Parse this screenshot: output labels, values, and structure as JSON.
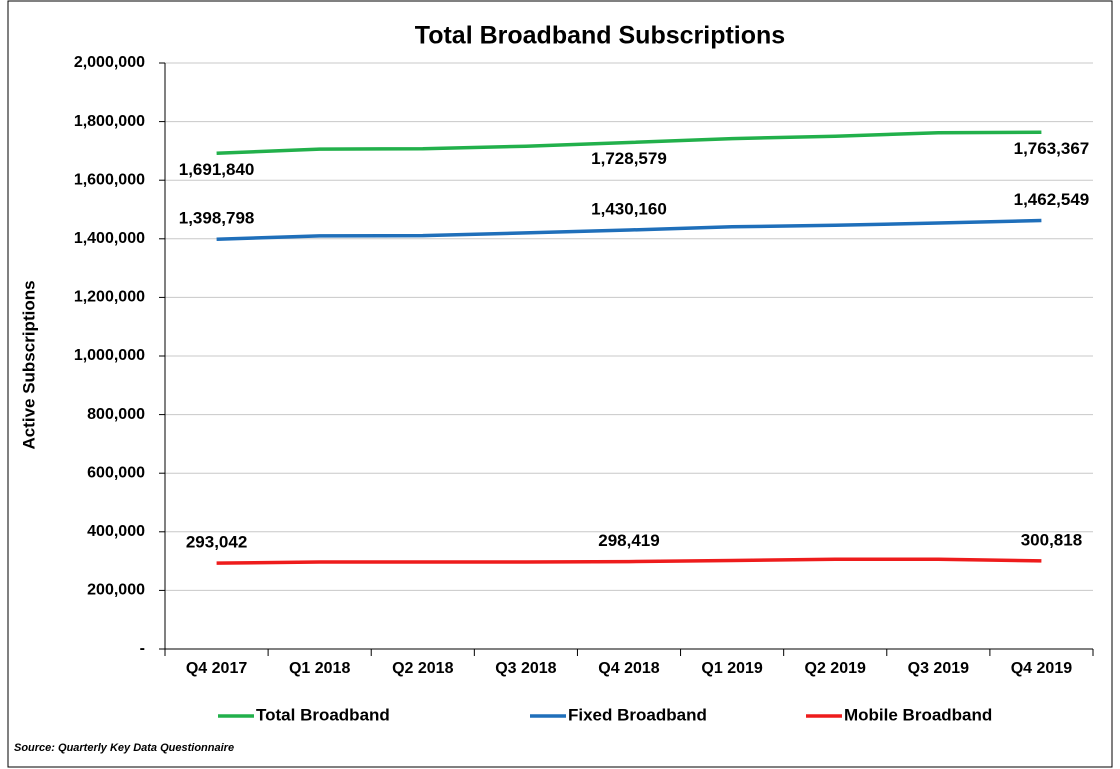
{
  "chart_data": {
    "type": "line",
    "title": "Total Broadband Subscriptions",
    "y_label": "Active Subscriptions",
    "source": "Source: Quarterly Key Data Questionnaire",
    "categories": [
      "Q4 2017",
      "Q1 2018",
      "Q2 2018",
      "Q3 2018",
      "Q4 2018",
      "Q1 2019",
      "Q2 2019",
      "Q3 2019",
      "Q4 2019"
    ],
    "series": [
      {
        "name": "Total Broadband",
        "color": "#22b04b",
        "values": [
          1691840,
          1706000,
          1707000,
          1716000,
          1728579,
          1742000,
          1750000,
          1762000,
          1763367
        ],
        "value_labels": [
          "1,691,840",
          null,
          null,
          null,
          "1,728,579",
          null,
          null,
          null,
          "1,763,367"
        ]
      },
      {
        "name": "Fixed Broadband",
        "color": "#1f6fba",
        "values": [
          1398798,
          1410000,
          1411000,
          1420000,
          1430160,
          1441000,
          1446000,
          1454000,
          1462549
        ],
        "value_labels": [
          "1,398,798",
          null,
          null,
          null,
          "1,430,160",
          null,
          null,
          null,
          "1,462,549"
        ]
      },
      {
        "name": "Mobile Broadband",
        "color": "#ee1c1c",
        "values": [
          293042,
          297000,
          297000,
          297000,
          298419,
          302000,
          306000,
          306000,
          300818
        ],
        "value_labels": [
          "293,042",
          null,
          null,
          null,
          "298,419",
          null,
          null,
          null,
          "300,818"
        ]
      }
    ],
    "ylim": [
      0,
      2000000
    ],
    "yticks": [
      {
        "value": 0,
        "label": "-"
      },
      {
        "value": 200000,
        "label": "200,000"
      },
      {
        "value": 400000,
        "label": "400,000"
      },
      {
        "value": 600000,
        "label": "600,000"
      },
      {
        "value": 800000,
        "label": "800,000"
      },
      {
        "value": 1000000,
        "label": "1,000,000"
      },
      {
        "value": 1200000,
        "label": "1,200,000"
      },
      {
        "value": 1400000,
        "label": "1,400,000"
      },
      {
        "value": 1600000,
        "label": "1,600,000"
      },
      {
        "value": 1800000,
        "label": "1,800,000"
      },
      {
        "value": 2000000,
        "label": "2,000,000"
      }
    ],
    "grid": true,
    "legend": "bottom"
  }
}
